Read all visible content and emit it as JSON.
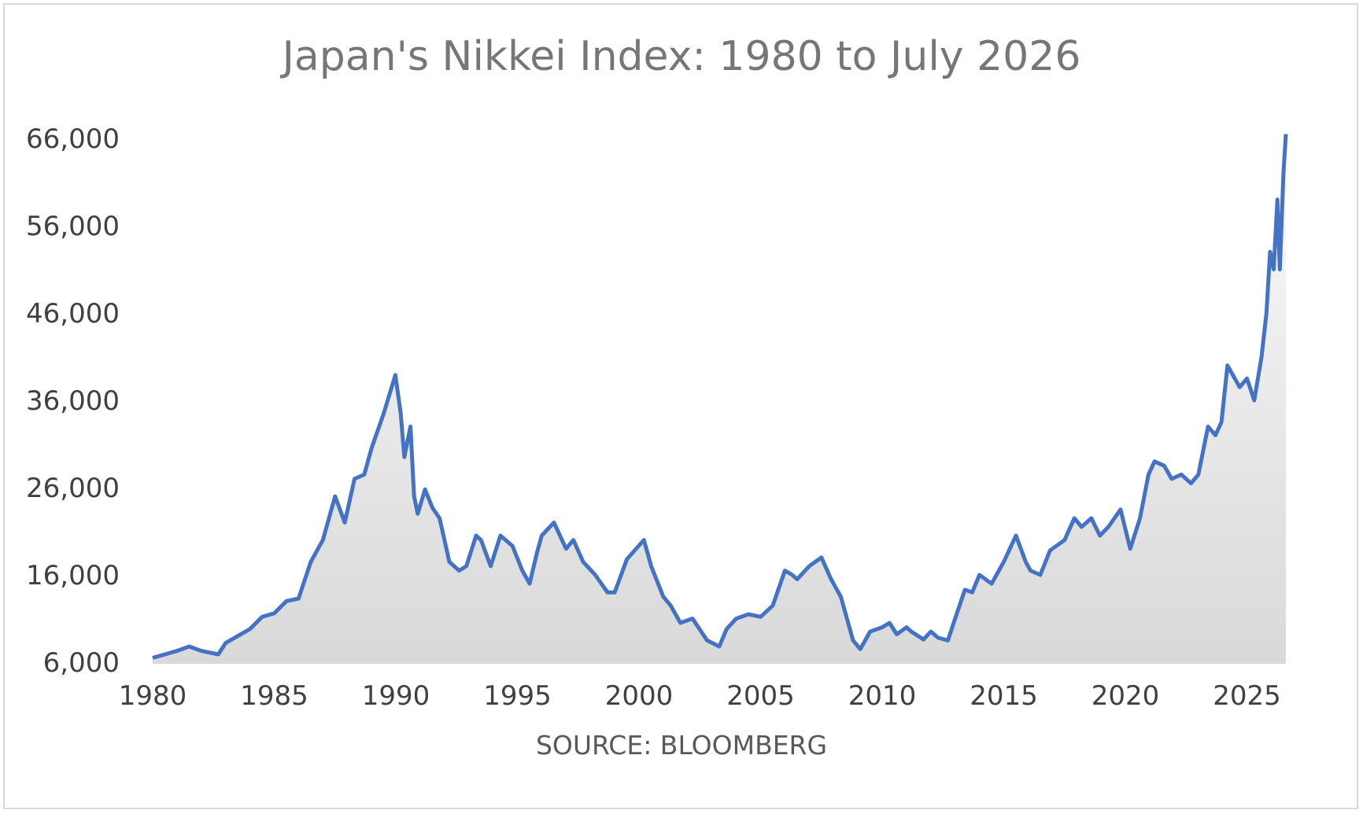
{
  "chart_data": {
    "type": "area",
    "title": "Japan's Nikkei Index: 1980 to July 2026",
    "xlabel": "SOURCE: BLOOMBERG",
    "ylabel": "",
    "ylim": [
      6000,
      66000
    ],
    "xlim": [
      1980,
      2026.6
    ],
    "y_ticks": [
      "6,000",
      "16,000",
      "26,000",
      "36,000",
      "46,000",
      "56,000",
      "66,000"
    ],
    "x_ticks": [
      "1980",
      "1985",
      "1990",
      "1995",
      "2000",
      "2005",
      "2010",
      "2015",
      "2020",
      "2025"
    ],
    "grid": false,
    "legend": "none",
    "colors": {
      "line": "#4472c4",
      "fill_top": "#fafafa",
      "fill_bottom": "#d9d9d9"
    },
    "x": [
      1980.0,
      1981.0,
      1981.5,
      1982.0,
      1982.7,
      1983.0,
      1984.0,
      1984.5,
      1985.0,
      1985.5,
      1986.0,
      1986.5,
      1987.0,
      1987.5,
      1987.9,
      1988.3,
      1988.7,
      1989.0,
      1989.5,
      1989.98,
      1990.2,
      1990.35,
      1990.6,
      1990.75,
      1990.9,
      1991.2,
      1991.5,
      1991.8,
      1992.2,
      1992.6,
      1992.9,
      1993.3,
      1993.5,
      1993.9,
      1994.3,
      1994.8,
      1995.2,
      1995.5,
      1995.8,
      1996.0,
      1996.5,
      1997.0,
      1997.3,
      1997.7,
      1998.2,
      1998.7,
      1999.0,
      1999.5,
      2000.2,
      2000.5,
      2001.0,
      2001.3,
      2001.7,
      2002.2,
      2002.8,
      2003.3,
      2003.6,
      2004.0,
      2004.5,
      2005.0,
      2005.5,
      2006.0,
      2006.3,
      2006.5,
      2007.0,
      2007.5,
      2007.9,
      2008.3,
      2008.8,
      2009.1,
      2009.5,
      2010.0,
      2010.3,
      2010.6,
      2011.0,
      2011.2,
      2011.7,
      2012.0,
      2012.3,
      2012.7,
      2013.0,
      2013.4,
      2013.7,
      2014.0,
      2014.5,
      2015.0,
      2015.5,
      2015.9,
      2016.1,
      2016.5,
      2016.9,
      2017.5,
      2017.9,
      2018.2,
      2018.6,
      2018.95,
      2019.3,
      2019.8,
      2020.2,
      2020.6,
      2020.95,
      2021.2,
      2021.6,
      2021.9,
      2022.3,
      2022.7,
      2023.0,
      2023.4,
      2023.7,
      2023.95,
      2024.2,
      2024.5,
      2024.7,
      2025.0,
      2025.3,
      2025.6,
      2025.8,
      2025.95,
      2026.1,
      2026.25,
      2026.35,
      2026.5,
      2026.6
    ],
    "y": [
      6500,
      7300,
      7800,
      7300,
      6900,
      8200,
      9800,
      11200,
      11600,
      13000,
      13300,
      17500,
      20000,
      25000,
      22000,
      27000,
      27500,
      30500,
      34500,
      38900,
      34500,
      29500,
      33000,
      25000,
      23000,
      25800,
      23700,
      22500,
      17500,
      16500,
      17000,
      20500,
      20000,
      17000,
      20500,
      19300,
      16500,
      15000,
      18500,
      20500,
      22000,
      19000,
      20000,
      17500,
      16000,
      14000,
      14000,
      17800,
      20000,
      17000,
      13500,
      12500,
      10500,
      11000,
      8500,
      7800,
      9800,
      11000,
      11500,
      11200,
      12500,
      16500,
      16000,
      15500,
      17000,
      18000,
      15500,
      13500,
      8500,
      7500,
      9500,
      10000,
      10500,
      9200,
      10000,
      9500,
      8600,
      9500,
      8800,
      8500,
      11000,
      14300,
      14000,
      16000,
      15000,
      17500,
      20500,
      17500,
      16500,
      16000,
      18800,
      20000,
      22500,
      21500,
      22500,
      20500,
      21500,
      23500,
      19000,
      22500,
      27500,
      29000,
      28500,
      27000,
      27500,
      26500,
      27500,
      33000,
      32000,
      33500,
      40000,
      38500,
      37500,
      38500,
      36000,
      41000,
      46000,
      53000,
      51000,
      59000,
      51000,
      62000,
      66500
    ]
  }
}
